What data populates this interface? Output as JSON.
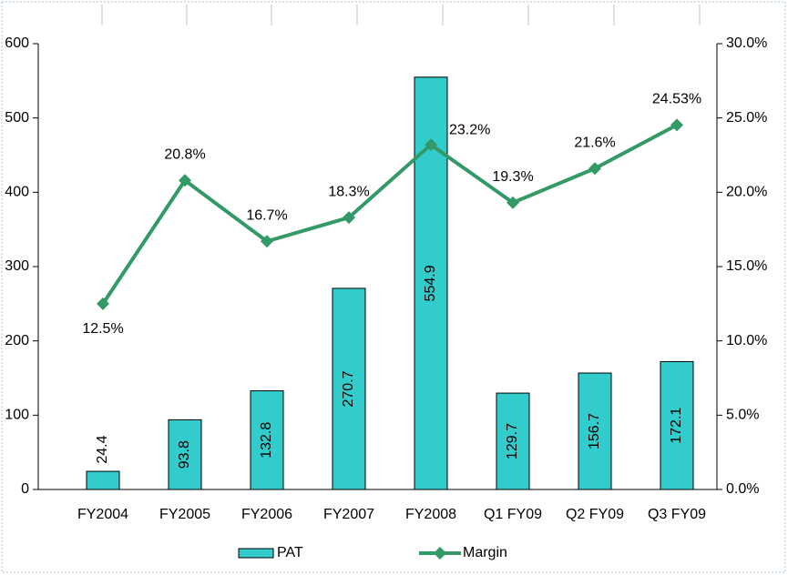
{
  "chart_data": {
    "type": "combo",
    "categories": [
      "FY2004",
      "FY2005",
      "FY2006",
      "FY2007",
      "FY2008",
      "Q1 FY09",
      "Q2 FY09",
      "Q3 FY09"
    ],
    "series": [
      {
        "name": "PAT",
        "type": "bar",
        "color": "#33cccc",
        "values": [
          24.4,
          93.8,
          132.8,
          270.7,
          554.9,
          129.7,
          156.7,
          172.1
        ]
      },
      {
        "name": "Margin",
        "type": "line",
        "axis": "y2",
        "color": "#339966",
        "values": [
          12.5,
          20.8,
          16.7,
          18.3,
          23.2,
          19.3,
          21.6,
          24.53
        ],
        "value_labels": [
          "12.5%",
          "20.8%",
          "16.7%",
          "18.3%",
          "23.2%",
          "19.3%",
          "21.6%",
          "24.53%"
        ]
      }
    ],
    "ylim": [
      0,
      600
    ],
    "yticks": [
      0,
      100,
      200,
      300,
      400,
      500,
      600
    ],
    "y2lim": [
      0,
      30
    ],
    "y2ticks": [
      {
        "value": 0,
        "label": "0.0%"
      },
      {
        "value": 5,
        "label": "5.0%"
      },
      {
        "value": 10,
        "label": "10.0%"
      },
      {
        "value": 15,
        "label": "15.0%"
      },
      {
        "value": 20,
        "label": "20.0%"
      },
      {
        "value": 25,
        "label": "25.0%"
      },
      {
        "value": 30,
        "label": "30.0%"
      }
    ],
    "legend": "bottom"
  }
}
